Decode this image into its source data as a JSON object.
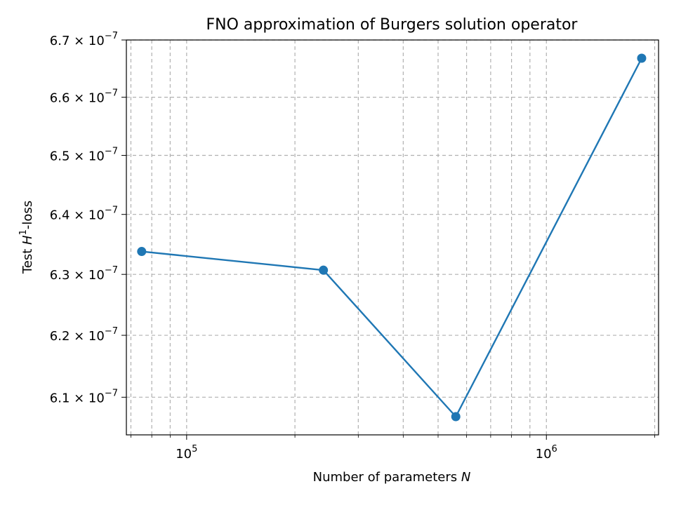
{
  "chart_data": {
    "type": "line",
    "title": "FNO approximation of Burgers solution operator",
    "xlabel": {
      "prefix": "Number of parameters ",
      "var": "N"
    },
    "ylabel": {
      "prefix": "Test ",
      "var": "H",
      "sup": "1",
      "suffix": "-loss"
    },
    "xscale": "log",
    "yscale": "log",
    "xlim": [
      68000,
      2050000
    ],
    "ylim": [
      6.04e-07,
      6.7e-07
    ],
    "grid": true,
    "marker": "circle",
    "color": "#1f77b4",
    "x": [
      75000,
      240000,
      560000,
      1840000
    ],
    "y": [
      6.338e-07,
      6.307e-07,
      6.069e-07,
      6.668e-07
    ],
    "x_major_ticks": [
      {
        "value": 100000,
        "base": "10",
        "exp": "5"
      },
      {
        "value": 1000000,
        "base": "10",
        "exp": "6"
      }
    ],
    "x_minor_ticks": [
      70000,
      80000,
      90000,
      200000,
      300000,
      400000,
      500000,
      600000,
      700000,
      800000,
      900000,
      2000000
    ],
    "y_ticks": [
      {
        "value": 6.1e-07,
        "mant": "6.1",
        "base": "10",
        "exp": "−7"
      },
      {
        "value": 6.2e-07,
        "mant": "6.2",
        "base": "10",
        "exp": "−7"
      },
      {
        "value": 6.3e-07,
        "mant": "6.3",
        "base": "10",
        "exp": "−7"
      },
      {
        "value": 6.4e-07,
        "mant": "6.4",
        "base": "10",
        "exp": "−7"
      },
      {
        "value": 6.5e-07,
        "mant": "6.5",
        "base": "10",
        "exp": "−7"
      },
      {
        "value": 6.6e-07,
        "mant": "6.6",
        "base": "10",
        "exp": "−7"
      },
      {
        "value": 6.7e-07,
        "mant": "6.7",
        "base": "10",
        "exp": "−7"
      }
    ]
  }
}
